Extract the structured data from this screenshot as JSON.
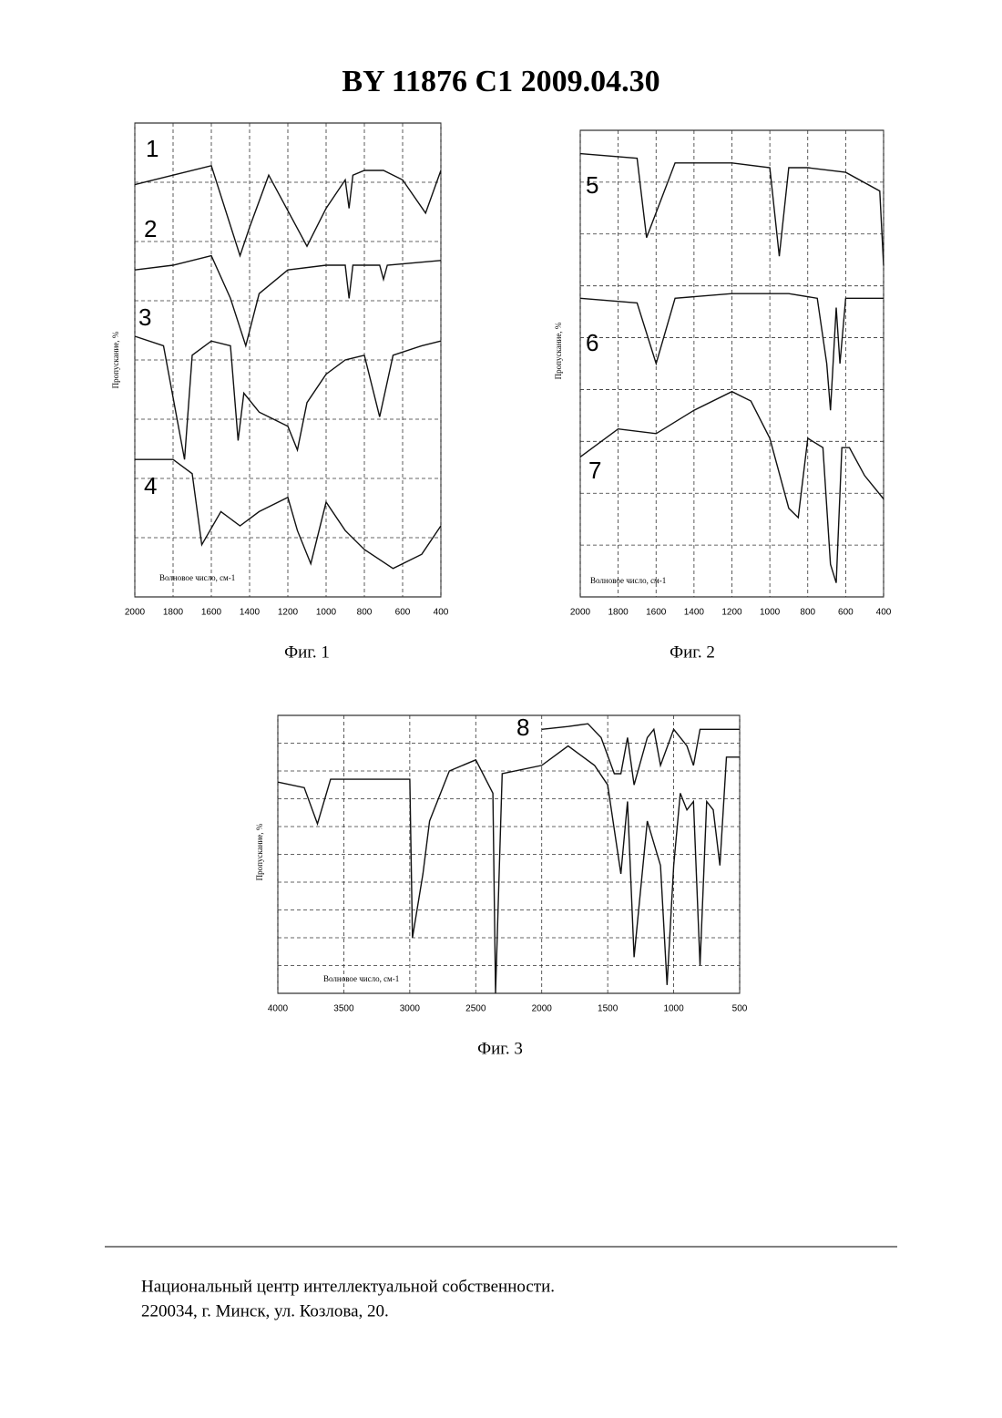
{
  "header": {
    "title": "BY  11876  C1  2009.04.30"
  },
  "chart_data": [
    {
      "type": "line",
      "caption": "Фиг. 1",
      "y_label": "Пропускание, %",
      "x_label": "Волновое число, см-1",
      "xlim": [
        2000,
        400
      ],
      "xticks": [
        2000,
        1800,
        1600,
        1400,
        1200,
        1000,
        800,
        600,
        400
      ],
      "ylim": [
        0,
        100
      ],
      "grid": true,
      "series": [
        {
          "name": "1",
          "color": "#111111",
          "x": [
            2000,
            1800,
            1600,
            1450,
            1400,
            1300,
            1100,
            1000,
            900,
            880,
            860,
            800,
            700,
            600,
            480,
            400
          ],
          "values": [
            87,
            89,
            91,
            72,
            78,
            89,
            74,
            82,
            88,
            82,
            89,
            90,
            90,
            88,
            81,
            90
          ]
        },
        {
          "name": "2",
          "color": "#111111",
          "x": [
            2000,
            1800,
            1600,
            1500,
            1420,
            1350,
            1200,
            1000,
            900,
            880,
            860,
            720,
            700,
            680,
            400
          ],
          "values": [
            69,
            70,
            72,
            63,
            53,
            64,
            69,
            70,
            70,
            63,
            70,
            70,
            67,
            70,
            71
          ]
        },
        {
          "name": "3",
          "color": "#111111",
          "x": [
            2000,
            1850,
            1740,
            1700,
            1600,
            1500,
            1460,
            1430,
            1350,
            1300,
            1200,
            1150,
            1100,
            1000,
            900,
            800,
            720,
            650,
            500,
            400
          ],
          "values": [
            55,
            53,
            29,
            51,
            54,
            53,
            33,
            43,
            39,
            38,
            36,
            31,
            41,
            47,
            50,
            51,
            38,
            51,
            53,
            54
          ]
        },
        {
          "name": "4",
          "color": "#111111",
          "x": [
            2000,
            1800,
            1700,
            1650,
            1550,
            1450,
            1350,
            1200,
            1150,
            1080,
            1000,
            900,
            800,
            650,
            500,
            400
          ],
          "values": [
            29,
            29,
            26,
            11,
            18,
            15,
            18,
            21,
            14,
            7,
            20,
            14,
            10,
            6,
            9,
            15
          ]
        }
      ]
    },
    {
      "type": "line",
      "caption": "Фиг. 2",
      "y_label": "Пропускание, %",
      "x_label": "Волновое число, см-1",
      "xlim": [
        2000,
        400
      ],
      "xticks": [
        2000,
        1800,
        1600,
        1400,
        1200,
        1000,
        800,
        600,
        400
      ],
      "ylim": [
        0,
        100
      ],
      "grid": true,
      "series": [
        {
          "name": "5",
          "color": "#111111",
          "x": [
            2000,
            1700,
            1650,
            1500,
            1200,
            1000,
            950,
            900,
            800,
            600,
            420,
            400
          ],
          "values": [
            95,
            94,
            77,
            93,
            93,
            92,
            73,
            92,
            92,
            91,
            87,
            71
          ]
        },
        {
          "name": "6",
          "color": "#111111",
          "x": [
            2000,
            1700,
            1600,
            1500,
            1200,
            900,
            750,
            700,
            680,
            650,
            630,
            600,
            400
          ],
          "values": [
            64,
            63,
            50,
            64,
            65,
            65,
            64,
            50,
            40,
            62,
            50,
            64,
            64
          ]
        },
        {
          "name": "7",
          "color": "#111111",
          "x": [
            2000,
            1800,
            1600,
            1400,
            1200,
            1100,
            1000,
            900,
            850,
            800,
            720,
            680,
            650,
            620,
            580,
            500,
            400
          ],
          "values": [
            30,
            36,
            35,
            40,
            44,
            42,
            34,
            19,
            17,
            34,
            32,
            7,
            3,
            32,
            32,
            26,
            21
          ]
        }
      ]
    },
    {
      "type": "line",
      "caption": "Фиг. 3",
      "y_label": "Пропускание, %",
      "x_label": "Волновое число, см-1",
      "xlim": [
        4000,
        500
      ],
      "xticks": [
        4000,
        3500,
        3000,
        2500,
        2000,
        1500,
        1000,
        500
      ],
      "ylim": [
        0,
        100
      ],
      "grid": true,
      "series": [
        {
          "name": "8",
          "color": "#111111",
          "x": [
            2000,
            1800,
            1650,
            1550,
            1450,
            1400,
            1350,
            1300,
            1200,
            1150,
            1100,
            1000,
            900,
            850,
            800,
            500
          ],
          "values": [
            95,
            96,
            97,
            92,
            79,
            79,
            92,
            75,
            92,
            95,
            82,
            95,
            89,
            82,
            95,
            95
          ]
        },
        {
          "name": "",
          "color": "#111111",
          "x": [
            4000,
            3800,
            3700,
            3600,
            3000,
            2980,
            2900,
            2850,
            2700,
            2500,
            2370,
            2350,
            2300,
            2000,
            1800,
            1600,
            1500,
            1400,
            1350,
            1300,
            1200,
            1100,
            1050,
            1000,
            950,
            900,
            850,
            800,
            750,
            700,
            650,
            600,
            500
          ],
          "values": [
            76,
            74,
            61,
            77,
            77,
            20,
            43,
            62,
            80,
            84,
            72,
            0,
            79,
            82,
            89,
            82,
            75,
            43,
            69,
            13,
            62,
            46,
            3,
            46,
            72,
            66,
            69,
            10,
            69,
            66,
            46,
            85,
            85
          ]
        }
      ]
    }
  ],
  "footer": {
    "lines": [
      "Национальный центр интеллектуальной собственности.",
      "220034, г. Минск, ул. Козлова, 20."
    ]
  }
}
